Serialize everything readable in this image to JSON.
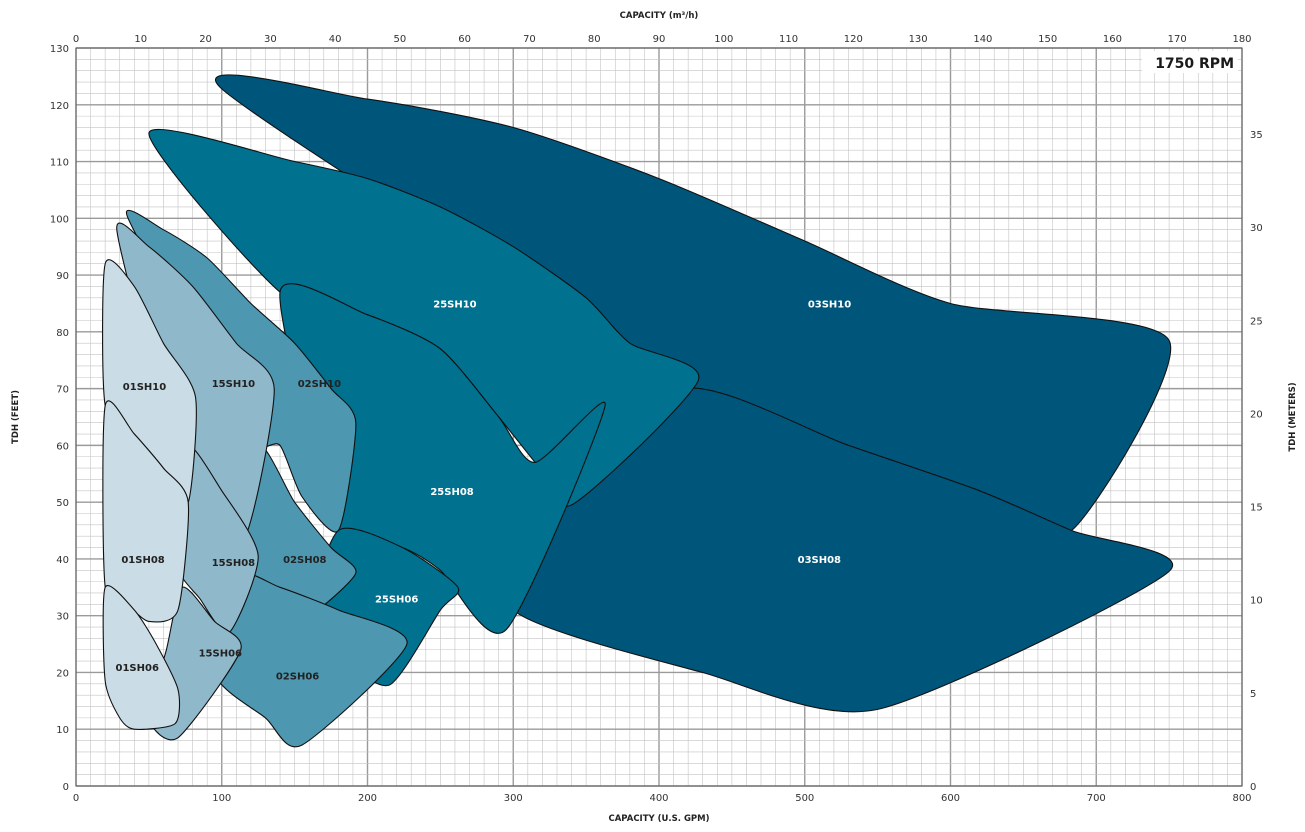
{
  "chart_data": {
    "type": "area",
    "title": "",
    "rpm_label": "1750 RPM",
    "x_bottom": {
      "label": "CAPACITY (U.S. GPM)",
      "range": [
        0,
        800
      ],
      "ticks": [
        0,
        100,
        200,
        300,
        400,
        500,
        600,
        700,
        800
      ]
    },
    "x_top": {
      "label": "CAPACITY (m³/h)",
      "range": [
        0,
        180
      ],
      "ticks": [
        0,
        10,
        20,
        30,
        40,
        50,
        60,
        70,
        80,
        90,
        100,
        110,
        120,
        130,
        140,
        150,
        160,
        170,
        180
      ]
    },
    "y_left": {
      "label": "TDH (FEET)",
      "range": [
        0,
        130
      ],
      "ticks": [
        0,
        10,
        20,
        30,
        40,
        50,
        60,
        70,
        80,
        90,
        100,
        110,
        120,
        130
      ]
    },
    "y_right": {
      "label": "TDH (METERS)",
      "range": [
        0,
        39.62
      ],
      "ticks": [
        0,
        5,
        10,
        15,
        20,
        25,
        30,
        35
      ]
    },
    "grid": true,
    "colors": {
      "darkest": "#00567a",
      "dark": "#00718f",
      "medium": "#4e97b0",
      "light": "#8fb8ca",
      "lightest": "#cadce5",
      "outline": "#111111",
      "grid_major": "#9a9a9a",
      "grid_minor": "#c4c4c4"
    },
    "series": [
      {
        "name": "03SH10",
        "color": "#00567a",
        "label_color": "#ffffff",
        "label_at": [
          517,
          85
        ],
        "outline": [
          [
            100,
            122.8
          ],
          [
            200,
            121
          ],
          [
            300,
            116
          ],
          [
            400,
            107
          ],
          [
            500,
            96
          ],
          [
            600,
            85
          ],
          [
            750,
            78.5
          ],
          [
            683,
            45
          ],
          [
            620,
            52
          ],
          [
            530,
            60
          ],
          [
            420,
            70
          ]
        ]
      },
      {
        "name": "03SH08",
        "color": "#00567a",
        "label_color": "#ffffff",
        "label_at": [
          510,
          40
        ],
        "outline": [
          [
            300,
            50
          ],
          [
            340,
            52
          ],
          [
            420,
            70
          ],
          [
            530,
            60
          ],
          [
            620,
            52
          ],
          [
            683,
            45
          ],
          [
            750,
            37.8
          ],
          [
            550,
            13.5
          ],
          [
            430,
            20
          ],
          [
            300,
            31
          ]
        ]
      },
      {
        "name": "25SH10",
        "color": "#00718f",
        "label_color": "#ffffff",
        "label_at": [
          260,
          85
        ],
        "outline": [
          [
            50,
            115
          ],
          [
            150,
            110
          ],
          [
            200,
            107
          ],
          [
            250,
            102
          ],
          [
            300,
            95
          ],
          [
            350,
            86
          ],
          [
            380,
            78
          ],
          [
            427,
            71.5
          ],
          [
            340,
            49.5
          ],
          [
            315,
            57
          ],
          [
            290,
            65
          ],
          [
            250,
            77
          ],
          [
            200,
            83
          ],
          [
            140,
            87
          ]
        ]
      },
      {
        "name": "25SH08",
        "color": "#00718f",
        "label_color": "#ffffff",
        "label_at": [
          258,
          52
        ],
        "outline": [
          [
            140,
            87
          ],
          [
            200,
            83
          ],
          [
            250,
            77
          ],
          [
            290,
            65
          ],
          [
            315,
            57
          ],
          [
            363,
            67
          ],
          [
            295,
            27.5
          ],
          [
            250,
            38
          ],
          [
            224,
            42
          ],
          [
            180,
            45
          ]
        ]
      },
      {
        "name": "25SH06",
        "color": "#00718f",
        "label_color": "#ffffff",
        "label_at": [
          220,
          33
        ],
        "outline": [
          [
            180,
            45
          ],
          [
            224,
            42
          ],
          [
            262,
            35
          ],
          [
            250,
            31
          ],
          [
            215,
            17.8
          ],
          [
            180,
            23
          ],
          [
            160,
            29
          ]
        ]
      },
      {
        "name": "02SH10",
        "color": "#4e97b0",
        "label_color": "#222222",
        "label_at": [
          167,
          71
        ],
        "outline": [
          [
            35,
            100.5
          ],
          [
            60,
            98
          ],
          [
            90,
            93
          ],
          [
            120,
            85
          ],
          [
            150,
            78
          ],
          [
            175,
            70
          ],
          [
            192,
            64
          ],
          [
            180,
            45
          ],
          [
            155,
            51
          ],
          [
            140,
            60
          ],
          [
            125,
            60
          ],
          [
            110,
            70
          ],
          [
            90,
            75
          ]
        ]
      },
      {
        "name": "02SH08",
        "color": "#4e97b0",
        "label_color": "#222222",
        "label_at": [
          157,
          40
        ],
        "outline": [
          [
            125,
            60
          ],
          [
            150,
            50
          ],
          [
            175,
            42
          ],
          [
            192,
            37.5
          ],
          [
            160,
            30
          ],
          [
            140,
            31
          ],
          [
            110,
            37
          ],
          [
            105,
            43
          ]
        ]
      },
      {
        "name": "02SH06",
        "color": "#4e97b0",
        "label_color": "#222222",
        "label_at": [
          152,
          19.5
        ],
        "outline": [
          [
            110,
            37
          ],
          [
            140,
            35
          ],
          [
            180,
            31
          ],
          [
            227,
            25
          ],
          [
            155,
            7.2
          ],
          [
            130,
            12
          ],
          [
            95,
            20
          ]
        ]
      },
      {
        "name": "15SH10",
        "color": "#8fb8ca",
        "label_color": "#222222",
        "label_at": [
          108,
          71
        ],
        "outline": [
          [
            28,
            98
          ],
          [
            50,
            95
          ],
          [
            80,
            88
          ],
          [
            110,
            78
          ],
          [
            136,
            70
          ],
          [
            116,
            44
          ],
          [
            90,
            54
          ],
          [
            75,
            60
          ],
          [
            60,
            66
          ]
        ]
      },
      {
        "name": "15SH08",
        "color": "#8fb8ca",
        "label_color": "#222222",
        "label_at": [
          108,
          39.5
        ],
        "outline": [
          [
            75,
            60
          ],
          [
            100,
            52
          ],
          [
            125,
            40.5
          ],
          [
            105,
            27
          ],
          [
            85,
            33
          ],
          [
            68,
            40
          ]
        ]
      },
      {
        "name": "15SH06",
        "color": "#8fb8ca",
        "label_color": "#222222",
        "label_at": [
          99,
          23.5
        ],
        "outline": [
          [
            73,
            35
          ],
          [
            95,
            29
          ],
          [
            113,
            24
          ],
          [
            70,
            8.5
          ],
          [
            50,
            12
          ],
          [
            62,
            24
          ]
        ]
      },
      {
        "name": "01SH10",
        "color": "#cadce5",
        "label_color": "#222222",
        "label_at": [
          47,
          70.5
        ],
        "outline": [
          [
            20,
            92
          ],
          [
            40,
            88
          ],
          [
            60,
            78
          ],
          [
            82,
            68.5
          ],
          [
            77,
            50
          ],
          [
            60,
            56
          ],
          [
            40,
            62
          ],
          [
            20,
            67
          ]
        ]
      },
      {
        "name": "01SH08",
        "color": "#cadce5",
        "label_color": "#222222",
        "label_at": [
          46,
          40
        ],
        "outline": [
          [
            20,
            67
          ],
          [
            40,
            62
          ],
          [
            60,
            56
          ],
          [
            77,
            50
          ],
          [
            70,
            31
          ],
          [
            50,
            29
          ],
          [
            35,
            32
          ],
          [
            20,
            35
          ]
        ]
      },
      {
        "name": "01SH06",
        "color": "#cadce5",
        "label_color": "#222222",
        "label_at": [
          42,
          21
        ],
        "outline": [
          [
            20,
            35
          ],
          [
            40,
            31
          ],
          [
            55,
            25
          ],
          [
            70,
            17
          ],
          [
            68,
            11
          ],
          [
            40,
            10
          ],
          [
            30,
            12
          ],
          [
            20,
            18.5
          ]
        ]
      }
    ]
  }
}
